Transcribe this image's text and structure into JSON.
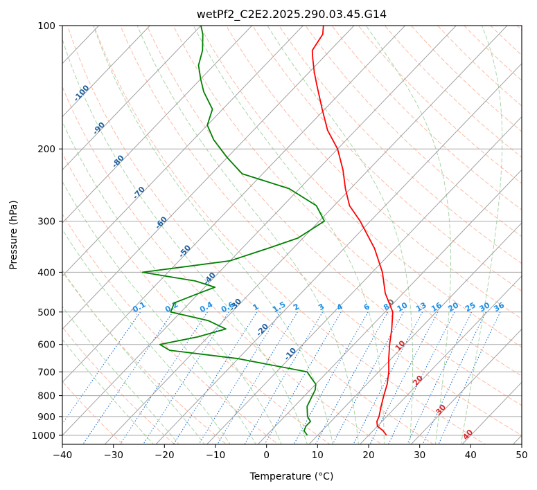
{
  "chart_data": {
    "type": "line",
    "title": "wetPf2_C2E2.2025.290.03.45.G14",
    "xlabel": "Temperature (°C)",
    "ylabel": "Pressure (hPa)",
    "xlim": [
      -40,
      50
    ],
    "ylim": [
      1050,
      100
    ],
    "y_scale": "log",
    "skew": true,
    "x_ticks": [
      -40,
      -30,
      -20,
      -10,
      0,
      10,
      20,
      30,
      40,
      50
    ],
    "y_ticks": [
      100,
      200,
      300,
      400,
      500,
      600,
      700,
      800,
      900,
      1000
    ],
    "grid": true,
    "series": [
      {
        "color": "#ff0000",
        "points": [
          [
            1000,
            23.5
          ],
          [
            975,
            22.0
          ],
          [
            950,
            20.0
          ],
          [
            925,
            19.0
          ],
          [
            900,
            18.5
          ],
          [
            850,
            17.0
          ],
          [
            800,
            15.5
          ],
          [
            750,
            14.0
          ],
          [
            700,
            12.0
          ],
          [
            650,
            9.5
          ],
          [
            600,
            7.0
          ],
          [
            550,
            4.5
          ],
          [
            500,
            1.5
          ],
          [
            450,
            -3.5
          ],
          [
            400,
            -8.0
          ],
          [
            350,
            -14.0
          ],
          [
            300,
            -22.0
          ],
          [
            275,
            -27.0
          ],
          [
            250,
            -31.0
          ],
          [
            225,
            -35.0
          ],
          [
            200,
            -40.0
          ],
          [
            180,
            -45.5
          ],
          [
            160,
            -50.5
          ],
          [
            140,
            -56.0
          ],
          [
            130,
            -59.0
          ],
          [
            120,
            -62.0
          ],
          [
            115,
            -63.5
          ],
          [
            110,
            -64.0
          ],
          [
            105,
            -64.5
          ],
          [
            100,
            -66.0
          ]
        ]
      },
      {
        "color": "#008000",
        "points": [
          [
            1000,
            8.0
          ],
          [
            975,
            6.5
          ],
          [
            950,
            6.0
          ],
          [
            925,
            6.0
          ],
          [
            900,
            4.5
          ],
          [
            850,
            2.5
          ],
          [
            800,
            1.5
          ],
          [
            775,
            1.0
          ],
          [
            750,
            0.0
          ],
          [
            725,
            -2.0
          ],
          [
            700,
            -4.0
          ],
          [
            650,
            -20.0
          ],
          [
            620,
            -35.0
          ],
          [
            600,
            -38.0
          ],
          [
            575,
            -32.0
          ],
          [
            550,
            -28.0
          ],
          [
            525,
            -33.0
          ],
          [
            500,
            -42.0
          ],
          [
            475,
            -43.0
          ],
          [
            450,
            -40.0
          ],
          [
            435,
            -38.0
          ],
          [
            420,
            -43.0
          ],
          [
            400,
            -55.0
          ],
          [
            375,
            -40.0
          ],
          [
            350,
            -35.0
          ],
          [
            330,
            -31.0
          ],
          [
            300,
            -29.0
          ],
          [
            275,
            -33.5
          ],
          [
            250,
            -42.0
          ],
          [
            230,
            -54.0
          ],
          [
            210,
            -60.0
          ],
          [
            190,
            -66.0
          ],
          [
            175,
            -70.0
          ],
          [
            160,
            -72.0
          ],
          [
            145,
            -77.0
          ],
          [
            135,
            -80.0
          ],
          [
            125,
            -83.0
          ],
          [
            115,
            -85.0
          ],
          [
            105,
            -88.0
          ],
          [
            100,
            -90.0
          ]
        ]
      }
    ],
    "dry_adiabat_labels": [
      "-100",
      "-90",
      "-80",
      "-70",
      "-60",
      "-50",
      "-40",
      "-30",
      "-20",
      "-10",
      "0",
      "10",
      "20",
      "30",
      "40"
    ],
    "mixing_ratio_labels": [
      "0.1",
      "0.2",
      "0.4",
      "0.6",
      "1",
      "1.5",
      "2",
      "3",
      "4",
      "6",
      "8",
      "10",
      "13",
      "16",
      "20",
      "25",
      "30",
      "36"
    ],
    "mixing_ratio_values": [
      0.1,
      0.2,
      0.4,
      0.6,
      1,
      1.5,
      2,
      3,
      4,
      6,
      8,
      10,
      13,
      16,
      20,
      25,
      30,
      36
    ],
    "mixing_ratio_label_pressure": 500,
    "colors": {
      "temperature": "#ff0000",
      "dewpoint": "#008000",
      "isotherm": "#a0a0a0",
      "isobar": "#a8a8a8",
      "dry_adiabat": "#fca98d",
      "moist_adiabat": "#9fd29f",
      "mixing_ratio": "#1f77d4",
      "label_cold": "#1f5f9f",
      "label_zero": "#707070",
      "label_warm": "#d62728",
      "mixing_label": "#1f8fe6"
    }
  }
}
